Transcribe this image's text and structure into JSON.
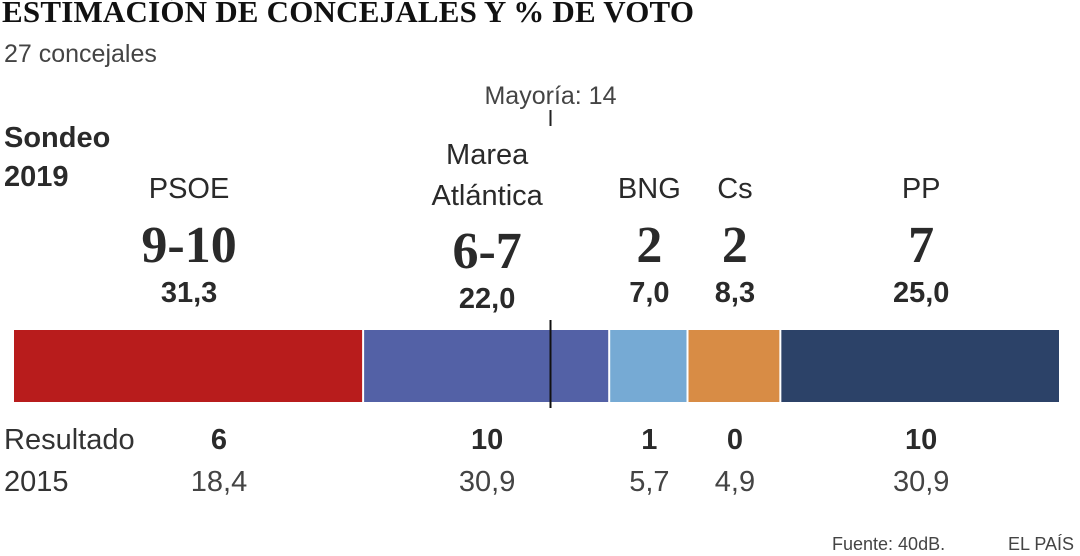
{
  "chart_data": {
    "type": "bar",
    "orientation": "horizontal-stacked",
    "title": "ESTIMACIÓN DE CONCEJALES Y % DE VOTO",
    "subtitle": "27 concejales",
    "majority_label": "Mayoría: 14",
    "majority_share": 0.5,
    "row_sondeo": [
      "Sondeo",
      "2019"
    ],
    "row_resultado": [
      "Resultado",
      "2015"
    ],
    "parties": [
      {
        "name": [
          "PSOE"
        ],
        "seats": "9-10",
        "pct": "31,3",
        "share": 31.3,
        "color": "#b81c1c",
        "seats_2015": "6",
        "pct_2015": "18,4"
      },
      {
        "name": [
          "Marea",
          "Atlántica"
        ],
        "seats": "6-7",
        "pct": "22,0",
        "share": 22.0,
        "color": "#5361a6",
        "seats_2015": "10",
        "pct_2015": "30,9"
      },
      {
        "name": [
          "BNG"
        ],
        "seats": "2",
        "pct": "7,0",
        "share": 7.0,
        "color": "#76aad4",
        "seats_2015": "1",
        "pct_2015": "5,7"
      },
      {
        "name": [
          "Cs"
        ],
        "seats": "2",
        "pct": "8,3",
        "share": 8.3,
        "color": "#d88c45",
        "seats_2015": "0",
        "pct_2015": "4,9"
      },
      {
        "name": [
          "PP"
        ],
        "seats": "7",
        "pct": "25,0",
        "share": 25.0,
        "color": "#2c4268",
        "seats_2015": "10",
        "pct_2015": "30,9"
      }
    ],
    "source": "Fuente: 40dB.",
    "publisher": "EL PAÍS"
  }
}
